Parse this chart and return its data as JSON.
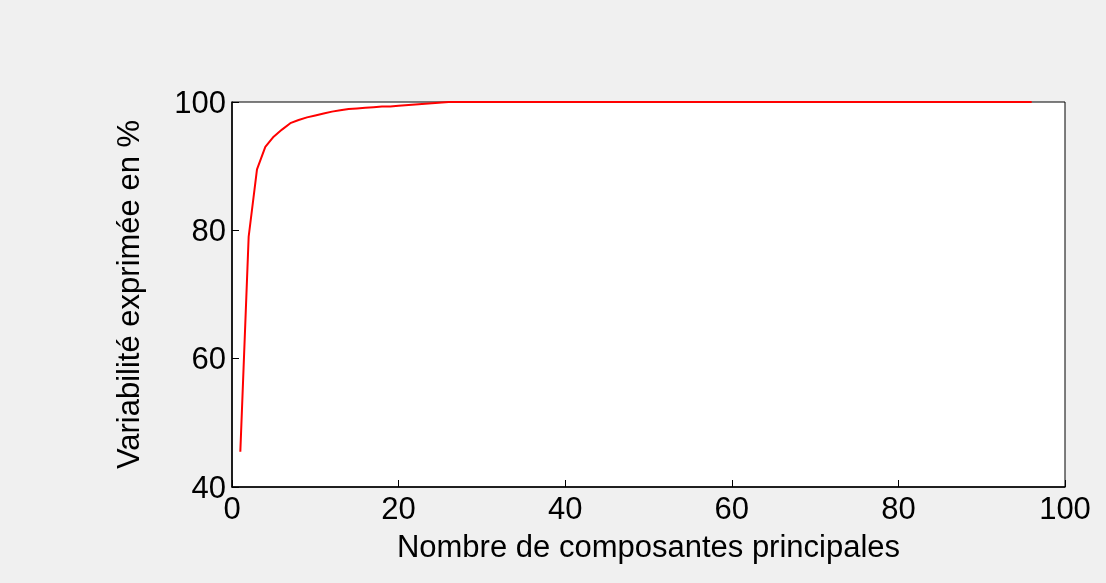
{
  "chart_data": {
    "type": "line",
    "xlabel": "Nombre de composantes principales",
    "ylabel": "Variabilité exprimée en %",
    "x": [
      1,
      2,
      3,
      4,
      5,
      6,
      7,
      8,
      9,
      10,
      11,
      12,
      13,
      14,
      15,
      16,
      17,
      18,
      19,
      20,
      22,
      24,
      26,
      40,
      60,
      80,
      96
    ],
    "series": [
      {
        "color": "#ff0000",
        "values": [
          45.5,
          79,
          89.5,
          93,
          94.6,
          95.7,
          96.7,
          97.2,
          97.6,
          97.9,
          98.2,
          98.5,
          98.7,
          98.9,
          99,
          99.1,
          99.2,
          99.3,
          99.3,
          99.4,
          99.6,
          99.8,
          100,
          100,
          100,
          100,
          100
        ]
      }
    ],
    "xlim": [
      0,
      100
    ],
    "xticks": [
      0,
      20,
      40,
      60,
      80,
      100
    ],
    "ylim": [
      40,
      100
    ],
    "yticks": [
      40,
      60,
      80,
      100
    ],
    "grid": false,
    "marker": "none",
    "line_style": "solid"
  }
}
